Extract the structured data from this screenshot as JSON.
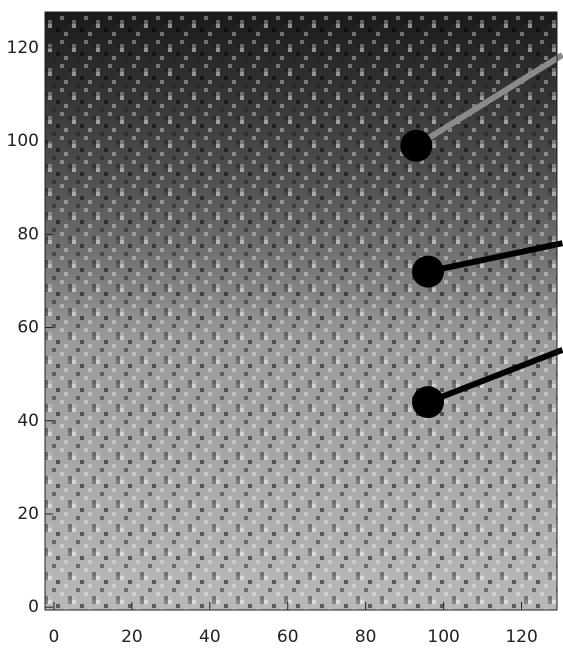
{
  "chart_data": {
    "type": "image",
    "xlim": [
      -2.3,
      129.1
    ],
    "ylim": [
      -0.6,
      127.7
    ],
    "xticks": [
      0,
      20,
      40,
      60,
      80,
      100,
      120
    ],
    "yticks": [
      0,
      20,
      40,
      60,
      80,
      100,
      120
    ],
    "series": [
      {
        "x": [
          93,
          96,
          96
        ],
        "y": [
          99,
          72,
          44
        ],
        "end_x": [
          130.5,
          130.5,
          130.5
        ],
        "end_y": [
          118.5,
          78.1,
          55.2
        ],
        "color": "#000000",
        "line_colors": [
          "#8a8a8a",
          "#000000",
          "#000000"
        ]
      }
    ]
  }
}
